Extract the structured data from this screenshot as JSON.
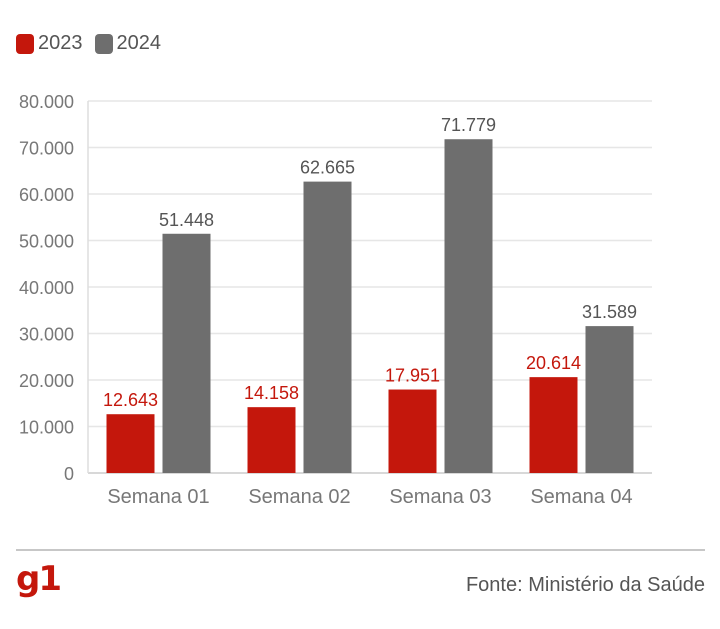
{
  "legend": [
    {
      "label": "2023",
      "color": "#c4170c"
    },
    {
      "label": "2024",
      "color": "#6e6e6e"
    }
  ],
  "chart_data": {
    "type": "bar",
    "categories": [
      "Semana 01",
      "Semana 02",
      "Semana 03",
      "Semana 04"
    ],
    "series": [
      {
        "name": "2023",
        "values": [
          12643,
          14158,
          17951,
          20614
        ],
        "labels": [
          "12.643",
          "14.158",
          "17.951",
          "20.614"
        ],
        "color": "#c4170c"
      },
      {
        "name": "2024",
        "values": [
          51448,
          62665,
          71779,
          31589
        ],
        "labels": [
          "51.448",
          "62.665",
          "71.779",
          "31.589"
        ],
        "color": "#6e6e6e"
      }
    ],
    "yticks": [
      0,
      10000,
      20000,
      30000,
      40000,
      50000,
      60000,
      70000,
      80000
    ],
    "ytick_labels": [
      "0",
      "10.000",
      "20.000",
      "30.000",
      "40.000",
      "50.000",
      "60.000",
      "70.000",
      "80.000"
    ],
    "ylim": [
      0,
      80000
    ],
    "grid": true,
    "legend_position": "top-left"
  },
  "footer": {
    "logo": "g1",
    "source": "Fonte: Ministério da Saúde"
  }
}
